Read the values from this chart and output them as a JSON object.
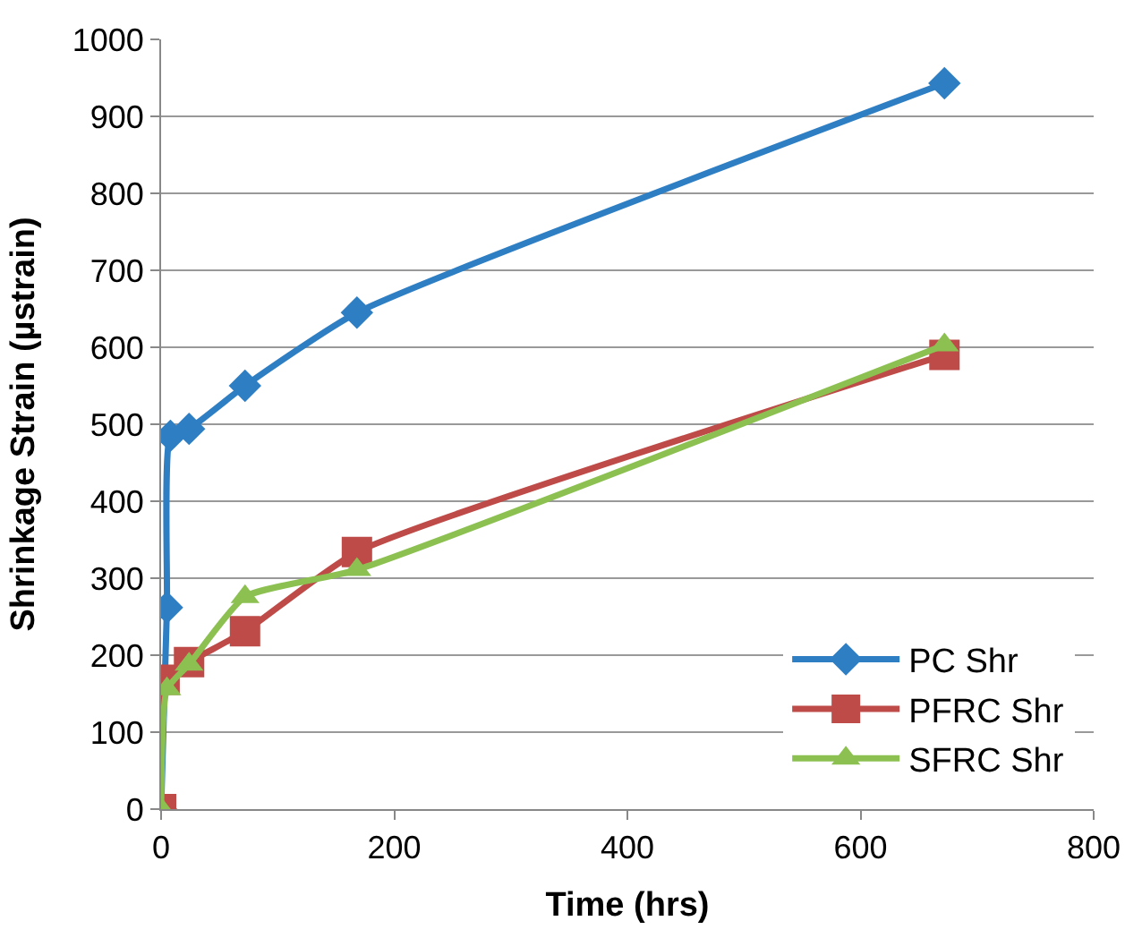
{
  "chart_data": {
    "type": "line",
    "xlabel": "Time (hrs)",
    "ylabel": "Shrinkage Strain (µstrain)",
    "xlim": [
      0,
      800
    ],
    "xticks": [
      0,
      200,
      400,
      600,
      800
    ],
    "ylim": [
      0,
      1000
    ],
    "yticks": [
      0,
      100,
      200,
      300,
      400,
      500,
      600,
      700,
      800,
      900,
      1000
    ],
    "grid": "y",
    "legend": "bottom right",
    "line_style": "solid",
    "series": [
      {
        "name": "PC Shr",
        "color": "#2e7ec4",
        "marker": "diamond",
        "x": [
          0,
          5,
          8,
          24,
          72,
          168,
          672
        ],
        "values": [
          0,
          262,
          485,
          494,
          550,
          645,
          943
        ]
      },
      {
        "name": "PFRC Shr",
        "color": "#be4b48",
        "marker": "square",
        "x": [
          0,
          3,
          24,
          72,
          168,
          672
        ],
        "values": [
          0,
          168,
          191,
          231,
          334,
          590
        ]
      },
      {
        "name": "SFRC Shr",
        "color": "#8cc152",
        "marker": "triangle",
        "x": [
          0,
          5,
          24,
          72,
          168,
          672
        ],
        "values": [
          0,
          156,
          188,
          276,
          311,
          603
        ]
      }
    ]
  }
}
